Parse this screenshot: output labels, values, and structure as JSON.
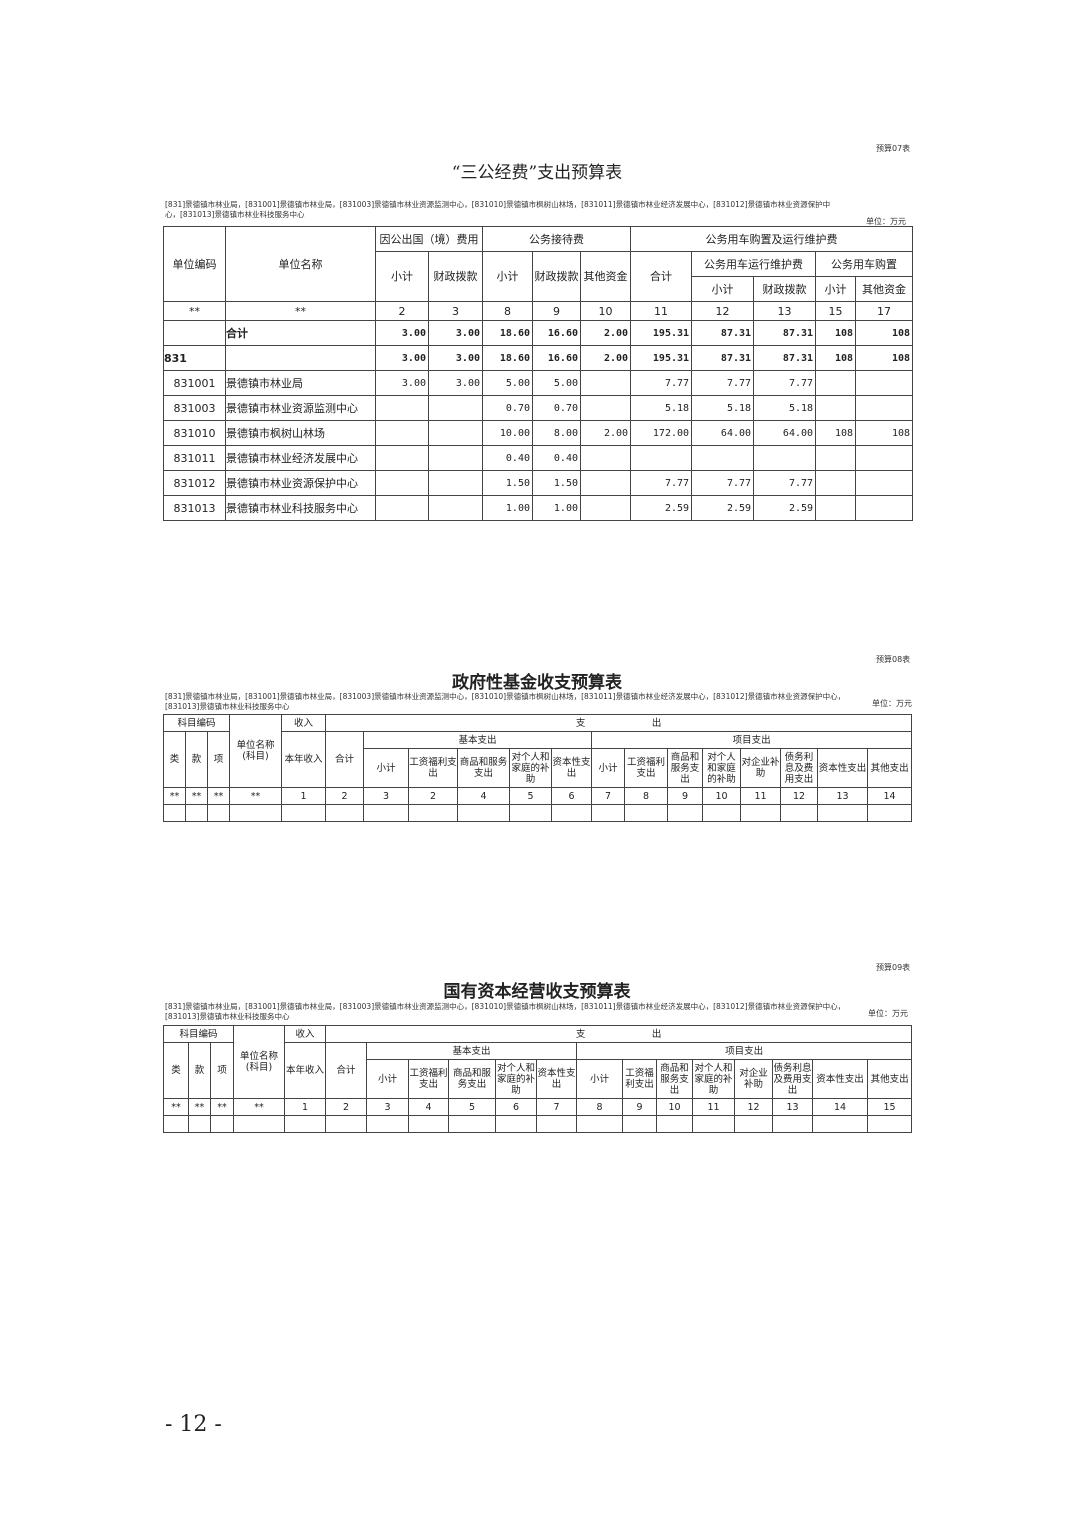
{
  "t1": {
    "tag": "预算07表",
    "title": "“三公经费”支出预算表",
    "units": "[831]景德镇市林业局，[831001]景德镇市林业局，[831003]景德镇市林业资源监测中心，[831010]景德镇市枫树山林场，[831011]景德镇市林业经济发展中心，[831012]景德镇市林业资源保护中心，[831013]景德镇市林业科技服务中心",
    "unit": "单位：万元",
    "h": {
      "code": "单位编码",
      "name": "单位名称",
      "abroad": "因公出国（境）费用",
      "recep": "公务接待费",
      "car": "公务用车购置及运行维护费",
      "sub": "小计",
      "fin": "财政拨款",
      "other": "其他资金",
      "total": "合计",
      "run": "公务用车运行维护费",
      "buy": "公务用车购置"
    },
    "nums": [
      "**",
      "**",
      "2",
      "3",
      "8",
      "9",
      "10",
      "11",
      "12",
      "13",
      "15",
      "17"
    ],
    "rows": [
      [
        "",
        "合计",
        "3.00",
        "3.00",
        "18.60",
        "16.60",
        "2.00",
        "195.31",
        "87.31",
        "87.31",
        "108",
        "108"
      ],
      [
        "831",
        "",
        "3.00",
        "3.00",
        "18.60",
        "16.60",
        "2.00",
        "195.31",
        "87.31",
        "87.31",
        "108",
        "108"
      ],
      [
        "831001",
        "景德镇市林业局",
        "3.00",
        "3.00",
        "5.00",
        "5.00",
        "",
        "7.77",
        "7.77",
        "7.77",
        "",
        ""
      ],
      [
        "831003",
        "景德镇市林业资源监测中心",
        "",
        "",
        "0.70",
        "0.70",
        "",
        "5.18",
        "5.18",
        "5.18",
        "",
        ""
      ],
      [
        "831010",
        "景德镇市枫树山林场",
        "",
        "",
        "10.00",
        "8.00",
        "2.00",
        "172.00",
        "64.00",
        "64.00",
        "108",
        "108"
      ],
      [
        "831011",
        "景德镇市林业经济发展中心",
        "",
        "",
        "0.40",
        "0.40",
        "",
        "",
        "",
        "",
        "",
        ""
      ],
      [
        "831012",
        "景德镇市林业资源保护中心",
        "",
        "",
        "1.50",
        "1.50",
        "",
        "7.77",
        "7.77",
        "7.77",
        "",
        ""
      ],
      [
        "831013",
        "景德镇市林业科技服务中心",
        "",
        "",
        "1.00",
        "1.00",
        "",
        "2.59",
        "2.59",
        "2.59",
        "",
        ""
      ]
    ]
  },
  "t2": {
    "tag": "预算08表",
    "title": "政府性基金收支预算表",
    "units": "[831]景德镇市林业局，[831001]景德镇市林业局，[831003]景德镇市林业资源监测中心，[831010]景德镇市枫树山林场，[831011]景德镇市林业经济发展中心，[831012]景德镇市林业资源保护中心，[831013]景德镇市林业科技服务中心",
    "unit": "单位：万元",
    "h": {
      "code": "科目编码",
      "lei": "类",
      "kuan": "款",
      "xiang": "项",
      "name": "单位名称(科目)",
      "income": "收入",
      "inc_year": "本年收入",
      "exp": "支　　　　　　　出",
      "total": "合计",
      "basic": "基本支出",
      "proj": "项目支出"
    },
    "cols": [
      "小计",
      "工资福利支出",
      "商品和服务支出",
      "对个人和家庭的补助",
      "资本性支出",
      "小计",
      "工资福利支出",
      "商品和服务支出",
      "对个人和家庭的补助",
      "对企业补助",
      "债务利息及费用支出",
      "资本性支出",
      "其他支出"
    ],
    "nums": [
      "**",
      "**",
      "**",
      "**",
      "1",
      "2",
      "3",
      "2",
      "4",
      "5",
      "6",
      "7",
      "8",
      "9",
      "10",
      "11",
      "12",
      "13",
      "14"
    ]
  },
  "t3": {
    "tag": "预算09表",
    "title": "国有资本经营收支预算表",
    "units": "[831]景德镇市林业局，[831001]景德镇市林业局，[831003]景德镇市林业资源监测中心，[831010]景德镇市枫树山林场，[831011]景德镇市林业经济发展中心，[831012]景德镇市林业资源保护中心，[831013]景德镇市林业科技服务中心",
    "unit": "单位：万元",
    "h": {
      "code": "科目编码",
      "lei": "类",
      "kuan": "款",
      "xiang": "项",
      "name": "单位名称(科目)",
      "income": "收入",
      "inc_year": "本年收入",
      "exp": "支　　　　　　　出",
      "total": "合计",
      "basic": "基本支出",
      "proj": "项目支出"
    },
    "cols": [
      "小计",
      "工资福利支出",
      "商品和服务支出",
      "对个人和家庭的补助",
      "资本性支出",
      "小计",
      "工资福利支出",
      "商品和服务支出",
      "对个人和家庭的补助",
      "对企业补助",
      "债务利息及费用支出",
      "资本性支出",
      "其他支出"
    ],
    "nums": [
      "**",
      "**",
      "**",
      "**",
      "1",
      "2",
      "3",
      "4",
      "5",
      "6",
      "7",
      "8",
      "9",
      "10",
      "11",
      "12",
      "13",
      "14",
      "15"
    ]
  },
  "page_number": "- 12 -"
}
